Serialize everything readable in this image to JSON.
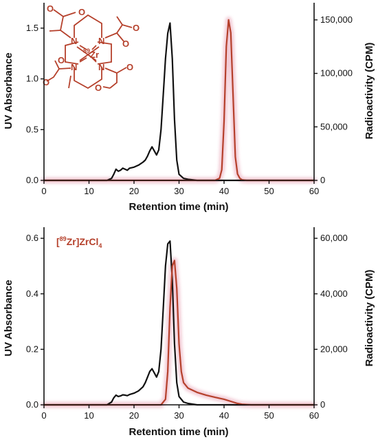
{
  "colors": {
    "uv_trace": "#111111",
    "radio_trace": "#b5402b",
    "radio_glow": "#f2c9d4",
    "axis": "#111111"
  },
  "chart_data": [
    {
      "type": "line",
      "panel": "top",
      "xlabel": "Retention time (min)",
      "ylabel": "UV Absorbance",
      "y2label": "Radioactivity (CPM)",
      "xlim": [
        0,
        60
      ],
      "ylim": [
        0,
        1.75
      ],
      "y2lim": [
        0,
        166000
      ],
      "x_ticks": [
        0,
        10,
        20,
        30,
        40,
        50,
        60
      ],
      "y_ticks": [
        0.0,
        0.5,
        1.0,
        1.5
      ],
      "y_tick_labels": [
        "0.0",
        "0.5",
        "1.0",
        "1.5"
      ],
      "y2_ticks": [
        0,
        50000,
        100000,
        150000
      ],
      "y2_tick_labels": [
        "0",
        "50,000",
        "100,000",
        "150,000"
      ],
      "inset_structure": {
        "metal_label": "Zr",
        "metal_isotope": "89",
        "atoms": [
          "N",
          "N",
          "N",
          "N",
          "O",
          "O",
          "O",
          "O",
          "O",
          "O",
          "O",
          "O"
        ]
      },
      "series": [
        {
          "axis": "left",
          "x": [
            0,
            14,
            15,
            15.5,
            16,
            16.5,
            17,
            17.5,
            18,
            18.5,
            19,
            20,
            21,
            22,
            22.5,
            23,
            23.5,
            24,
            24.5,
            25,
            25.5,
            26,
            26.5,
            27,
            27.5,
            28,
            28.5,
            29,
            29.5,
            30,
            31,
            32,
            34,
            40,
            60
          ],
          "y": [
            0,
            0,
            0.02,
            0.06,
            0.11,
            0.09,
            0.1,
            0.12,
            0.11,
            0.1,
            0.12,
            0.13,
            0.15,
            0.18,
            0.2,
            0.24,
            0.29,
            0.33,
            0.29,
            0.25,
            0.3,
            0.5,
            0.85,
            1.2,
            1.45,
            1.55,
            1.2,
            0.6,
            0.2,
            0.06,
            0.02,
            0.01,
            0,
            0,
            0
          ]
        },
        {
          "axis": "right",
          "x": [
            0,
            38,
            39,
            39.5,
            40,
            40.5,
            41,
            41.5,
            42,
            42.5,
            43,
            43.5,
            44,
            45,
            60
          ],
          "y": [
            0,
            0,
            2000,
            10000,
            55000,
            125000,
            150000,
            138000,
            80000,
            22000,
            6000,
            2000,
            500,
            0,
            0
          ]
        }
      ]
    },
    {
      "type": "line",
      "panel": "bottom",
      "xlabel": "Retention time (min)",
      "ylabel": "UV Absorbance",
      "y2label": "Radioactivity (CPM)",
      "xlim": [
        0,
        60
      ],
      "ylim": [
        0,
        0.64
      ],
      "y2lim": [
        0,
        64000
      ],
      "x_ticks": [
        0,
        10,
        20,
        30,
        40,
        50,
        60
      ],
      "y_ticks": [
        0.0,
        0.2,
        0.4,
        0.6
      ],
      "y_tick_labels": [
        "0.0",
        "0.2",
        "0.4",
        "0.6"
      ],
      "y2_ticks": [
        0,
        20000,
        40000,
        60000
      ],
      "y2_tick_labels": [
        "0",
        "20,000",
        "40,000",
        "60,000"
      ],
      "annotation": {
        "isotope": "89",
        "element": "Zr",
        "compound": "ZrCl",
        "subscript": "4"
      },
      "series": [
        {
          "axis": "left",
          "x": [
            0,
            14,
            15,
            15.5,
            16,
            16.5,
            17,
            17.5,
            18,
            18.5,
            19,
            20,
            21,
            22,
            22.5,
            23,
            23.5,
            24,
            24.5,
            25,
            25.5,
            26,
            26.5,
            27,
            27.5,
            28,
            28.5,
            29,
            29.5,
            30,
            31,
            32,
            34,
            40,
            60
          ],
          "y": [
            0,
            0,
            0.01,
            0.025,
            0.035,
            0.03,
            0.032,
            0.036,
            0.035,
            0.033,
            0.037,
            0.042,
            0.05,
            0.065,
            0.08,
            0.1,
            0.12,
            0.13,
            0.115,
            0.1,
            0.12,
            0.2,
            0.35,
            0.5,
            0.58,
            0.59,
            0.45,
            0.22,
            0.08,
            0.03,
            0.01,
            0.005,
            0,
            0,
            0
          ]
        },
        {
          "axis": "right",
          "x": [
            0,
            26,
            27,
            27.5,
            28,
            28.5,
            29,
            29.5,
            30,
            30.5,
            31,
            32,
            34,
            36,
            38,
            40,
            42,
            43,
            44,
            46,
            60
          ],
          "y": [
            0,
            0,
            2000,
            12000,
            35000,
            50000,
            52000,
            42000,
            22000,
            12000,
            8000,
            6000,
            4500,
            3500,
            2700,
            2000,
            1000,
            500,
            200,
            0,
            0
          ]
        }
      ]
    }
  ]
}
